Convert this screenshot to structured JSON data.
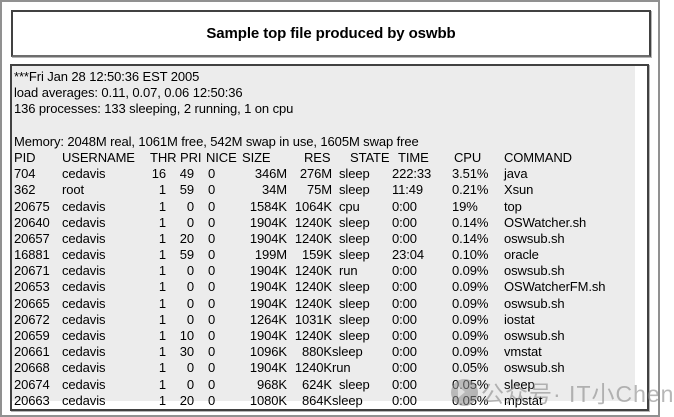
{
  "title": "Sample top file produced by oswbb",
  "top_output": {
    "timestamp_line": "***Fri Jan 28 12:50:36 EST 2005",
    "load_line": "load averages: 0.11, 0.07, 0.06 12:50:36",
    "processes_line": "136 processes: 133 sleeping, 2 running, 1 on cpu",
    "memory_line": "Memory: 2048M real, 1061M free, 542M swap in use, 1605M swap free"
  },
  "table": {
    "columns": [
      "PID",
      "USERNAME",
      "THR",
      "PRI",
      "NICE",
      "SIZE",
      "RES",
      "STATE",
      "TIME",
      "CPU",
      "COMMAND"
    ],
    "rows": [
      {
        "pid": "704",
        "user": "cedavis",
        "thr": "16",
        "pri": "49",
        "nice": "0",
        "size": "346M",
        "res": "276M",
        "state": "sleep",
        "time": "222:33",
        "cpu": "3.51%",
        "cmd": "java",
        "merged": false
      },
      {
        "pid": "362",
        "user": "root",
        "thr": "1",
        "pri": "59",
        "nice": "0",
        "size": "34M",
        "res": "75M",
        "state": "sleep",
        "time": "11:49",
        "cpu": "0.21%",
        "cmd": "Xsun",
        "merged": false
      },
      {
        "pid": "20675",
        "user": "cedavis",
        "thr": "1",
        "pri": "0",
        "nice": "0",
        "size": "1584K",
        "res": "1064K",
        "state": "cpu",
        "time": "0:00",
        "cpu": "19%",
        "cmd": "top",
        "merged": false
      },
      {
        "pid": "20640",
        "user": "cedavis",
        "thr": "1",
        "pri": "0",
        "nice": "0",
        "size": "1904K",
        "res": "1240K",
        "state": "sleep",
        "time": "0:00",
        "cpu": "0.14%",
        "cmd": "OSWatcher.sh",
        "merged": false
      },
      {
        "pid": "20657",
        "user": "cedavis",
        "thr": "1",
        "pri": "20",
        "nice": "0",
        "size": "1904K",
        "res": "1240K",
        "state": "sleep",
        "time": "0:00",
        "cpu": "0.14%",
        "cmd": "oswsub.sh",
        "merged": false
      },
      {
        "pid": "16881",
        "user": "cedavis",
        "thr": "1",
        "pri": "59",
        "nice": "0",
        "size": "199M",
        "res": "159K",
        "state": "sleep",
        "time": "23:04",
        "cpu": "0.10%",
        "cmd": "oracle",
        "merged": false
      },
      {
        "pid": "20671",
        "user": "cedavis",
        "thr": "1",
        "pri": "0",
        "nice": "0",
        "size": "1904K",
        "res": "1240K",
        "state": "run",
        "time": "0:00",
        "cpu": "0.09%",
        "cmd": "oswsub.sh",
        "merged": false
      },
      {
        "pid": "20653",
        "user": "cedavis",
        "thr": "1",
        "pri": "0",
        "nice": "0",
        "size": "1904K",
        "res": "1240K",
        "state": "sleep",
        "time": "0:00",
        "cpu": "0.09%",
        "cmd": "OSWatcherFM.sh",
        "merged": false
      },
      {
        "pid": "20665",
        "user": "cedavis",
        "thr": "1",
        "pri": "0",
        "nice": "0",
        "size": "1904K",
        "res": "1240K",
        "state": "sleep",
        "time": "0:00",
        "cpu": "0.09%",
        "cmd": "oswsub.sh",
        "merged": false
      },
      {
        "pid": "20672",
        "user": "cedavis",
        "thr": "1",
        "pri": "0",
        "nice": "0",
        "size": "1264K",
        "res": "1031K",
        "state": "sleep",
        "time": "0:00",
        "cpu": "0.09%",
        "cmd": "iostat",
        "merged": false
      },
      {
        "pid": "20659",
        "user": "cedavis",
        "thr": "1",
        "pri": "10",
        "nice": "0",
        "size": "1904K",
        "res": "1240K",
        "state": "sleep",
        "time": "0:00",
        "cpu": "0.09%",
        "cmd": "oswsub.sh",
        "merged": false
      },
      {
        "pid": "20661",
        "user": "cedavis",
        "thr": "1",
        "pri": "30",
        "nice": "0",
        "size": "1096K",
        "res": "880K",
        "state": "sleep",
        "time": "0:00",
        "cpu": "0.09%",
        "cmd": "vmstat",
        "merged": true
      },
      {
        "pid": "20668",
        "user": "cedavis",
        "thr": "1",
        "pri": "0",
        "nice": "0",
        "size": "1904K",
        "res": "1240K",
        "state": "run",
        "time": "0:00",
        "cpu": "0.05%",
        "cmd": "oswsub.sh",
        "merged": true
      },
      {
        "pid": "20674",
        "user": "cedavis",
        "thr": "1",
        "pri": "0",
        "nice": "0",
        "size": "968K",
        "res": "624K",
        "state": "sleep",
        "time": "0:00",
        "cpu": "0.05%",
        "cmd": "sleep",
        "merged": false
      },
      {
        "pid": "20663",
        "user": "cedavis",
        "thr": "1",
        "pri": "20",
        "nice": "0",
        "size": "1080K",
        "res": "864K",
        "state": "sleep",
        "time": "0:00",
        "cpu": "0.05%",
        "cmd": "mpstat",
        "merged": true
      }
    ]
  },
  "watermark": {
    "icon": "wechat-official-account-logo",
    "text": "公众号· IT小Chen"
  },
  "colors": {
    "panel_bg": "#ececec",
    "border_dark": "#414141",
    "outer_frame_gray": "#919191",
    "watermark_gray": "#8a8a8a"
  }
}
